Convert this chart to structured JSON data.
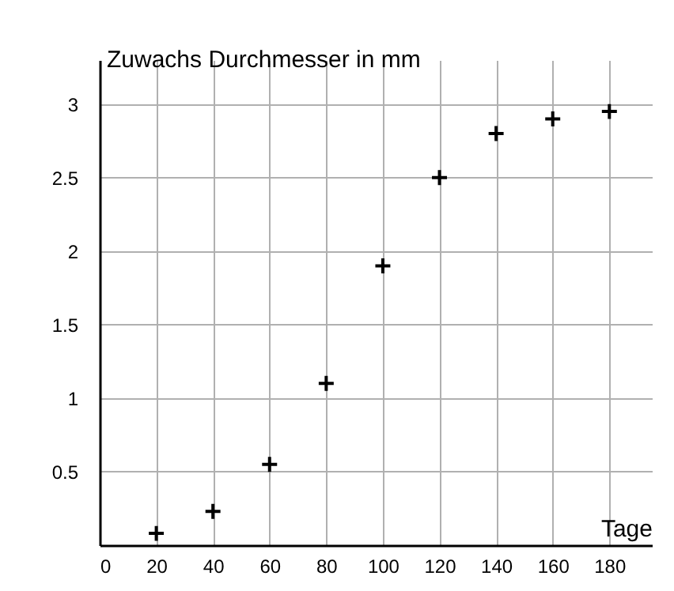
{
  "chart_data": {
    "type": "scatter",
    "xlabel": "Tage",
    "ylabel": "Zuwachs Durchmesser in mm",
    "x": [
      20,
      40,
      60,
      80,
      100,
      120,
      140,
      160,
      180
    ],
    "values": [
      0.08,
      0.23,
      0.55,
      1.1,
      1.9,
      2.5,
      2.8,
      2.9,
      2.95
    ],
    "color": "#000000",
    "marker": "cross",
    "grid": true,
    "xlim": [
      0,
      195
    ],
    "xticks": [
      0,
      20,
      40,
      60,
      80,
      100,
      120,
      140,
      160,
      180
    ],
    "ylim": [
      0,
      3.3
    ],
    "yticks": [
      0.5,
      1,
      1.5,
      2,
      2.5,
      3
    ]
  }
}
